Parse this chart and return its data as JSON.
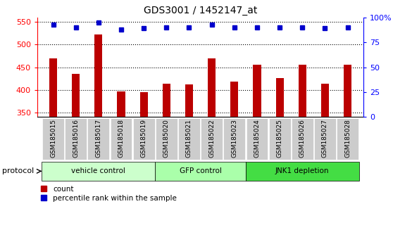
{
  "title": "GDS3001 / 1452147_at",
  "samples": [
    "GSM185015",
    "GSM185016",
    "GSM185017",
    "GSM185018",
    "GSM185019",
    "GSM185020",
    "GSM185021",
    "GSM185022",
    "GSM185023",
    "GSM185024",
    "GSM185025",
    "GSM185026",
    "GSM185027",
    "GSM185028"
  ],
  "counts": [
    470,
    435,
    523,
    397,
    395,
    413,
    412,
    470,
    418,
    455,
    426,
    455,
    414,
    455
  ],
  "percentile_ranks": [
    93,
    90,
    95,
    88,
    89,
    90,
    90,
    93,
    90,
    90,
    90,
    90,
    89,
    90
  ],
  "groups": [
    {
      "label": "vehicle control",
      "start": 0,
      "end": 5,
      "color": "#ccffcc"
    },
    {
      "label": "GFP control",
      "start": 5,
      "end": 9,
      "color": "#aaffaa"
    },
    {
      "label": "JNK1 depletion",
      "start": 9,
      "end": 14,
      "color": "#44dd44"
    }
  ],
  "ylim_left": [
    340,
    560
  ],
  "ylim_right": [
    0,
    100
  ],
  "yticks_left": [
    350,
    400,
    450,
    500,
    550
  ],
  "yticks_right": [
    0,
    25,
    50,
    75,
    100
  ],
  "bar_color": "#bb0000",
  "dot_color": "#0000cc",
  "plot_bg_color": "#ffffff",
  "tick_bg_color": "#cccccc",
  "protocol_label": "protocol",
  "bar_width": 0.35
}
